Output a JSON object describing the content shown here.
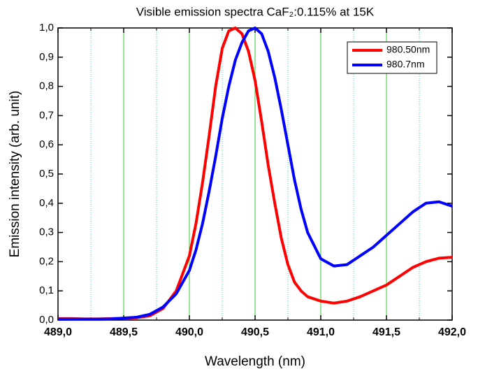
{
  "chart_data": {
    "type": "line",
    "title": "Visible emission spectra CaF₂:0.115% at 15K",
    "xlabel": "Wavelength (nm)",
    "ylabel": "Emission intensity (arb. unit)",
    "x": [
      489.0,
      489.1,
      489.2,
      489.3,
      489.4,
      489.5,
      489.6,
      489.7,
      489.8,
      489.9,
      490.0,
      490.05,
      490.1,
      490.15,
      490.2,
      490.25,
      490.3,
      490.35,
      490.4,
      490.45,
      490.5,
      490.55,
      490.6,
      490.65,
      490.7,
      490.75,
      490.8,
      490.85,
      490.9,
      491.0,
      491.1,
      491.2,
      491.3,
      491.4,
      491.5,
      491.6,
      491.7,
      491.8,
      491.9,
      492.0
    ],
    "series": [
      {
        "name": "980.50nm",
        "color": "#ff0000",
        "values": [
          0.005,
          0.005,
          0.004,
          0.004,
          0.005,
          0.006,
          0.008,
          0.015,
          0.04,
          0.1,
          0.22,
          0.33,
          0.47,
          0.63,
          0.8,
          0.93,
          0.99,
          1.0,
          0.98,
          0.92,
          0.82,
          0.68,
          0.53,
          0.4,
          0.28,
          0.19,
          0.13,
          0.1,
          0.08,
          0.065,
          0.058,
          0.065,
          0.08,
          0.1,
          0.12,
          0.15,
          0.18,
          0.2,
          0.212,
          0.215
        ]
      },
      {
        "name": "980.7nm",
        "color": "#0000ff",
        "values": [
          0.003,
          0.003,
          0.003,
          0.003,
          0.004,
          0.007,
          0.01,
          0.02,
          0.045,
          0.09,
          0.17,
          0.24,
          0.33,
          0.44,
          0.56,
          0.69,
          0.8,
          0.89,
          0.95,
          0.99,
          1.0,
          0.98,
          0.92,
          0.83,
          0.72,
          0.6,
          0.48,
          0.38,
          0.3,
          0.21,
          0.185,
          0.19,
          0.22,
          0.25,
          0.29,
          0.33,
          0.37,
          0.4,
          0.405,
          0.39
        ]
      }
    ],
    "xlim": [
      489.0,
      492.0
    ],
    "xticks": [
      {
        "value": 489.0,
        "label": "489,0"
      },
      {
        "value": 489.5,
        "label": "489,5"
      },
      {
        "value": 490.0,
        "label": "490,0"
      },
      {
        "value": 490.5,
        "label": "490,5"
      },
      {
        "value": 491.0,
        "label": "491,0"
      },
      {
        "value": 491.5,
        "label": "491,5"
      },
      {
        "value": 492.0,
        "label": "492,0"
      }
    ],
    "xminorticks": [
      489.25,
      489.75,
      490.25,
      490.75,
      491.25,
      491.75
    ],
    "ylim": [
      0,
      1.0
    ],
    "yticks": [
      {
        "value": 0,
        "label": "0,0"
      },
      {
        "value": 0.1,
        "label": "0,1"
      },
      {
        "value": 0.2,
        "label": "0,2"
      },
      {
        "value": 0.3,
        "label": "0,3"
      },
      {
        "value": 0.4,
        "label": "0,4"
      },
      {
        "value": 0.5,
        "label": "0,5"
      },
      {
        "value": 0.6,
        "label": "0,6"
      },
      {
        "value": 0.7,
        "label": "0,7"
      },
      {
        "value": 0.8,
        "label": "0,8"
      },
      {
        "value": 0.9,
        "label": "0,9"
      },
      {
        "value": 1.0,
        "label": "1,0"
      }
    ],
    "grid": true,
    "legend": "upper right"
  }
}
